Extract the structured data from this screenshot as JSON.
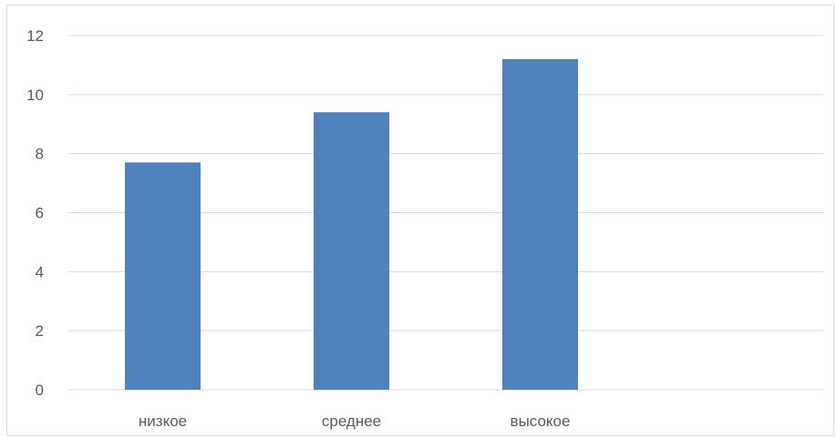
{
  "chart_data": {
    "type": "bar",
    "title": "",
    "xlabel": "",
    "ylabel": "",
    "categories": [
      "низкое",
      "среднее",
      "высокое",
      ""
    ],
    "values": [
      7.7,
      9.4,
      11.2,
      null
    ],
    "ylim": [
      0,
      12
    ],
    "yticks": [
      0,
      2,
      4,
      6,
      8,
      10,
      12
    ],
    "grid": true,
    "legend": "none",
    "colors": {
      "bar": "#4f81bd",
      "grid": "#d9d9d9",
      "text": "#595959"
    }
  }
}
